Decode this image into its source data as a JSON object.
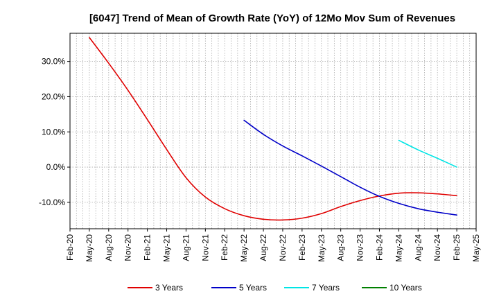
{
  "chart_data": {
    "type": "line",
    "title": "[6047]  Trend of Mean of Growth Rate (YoY) of 12Mo Mov Sum of Revenues",
    "xlabel": "",
    "ylabel": "",
    "ylim": [
      -17.5,
      38
    ],
    "yticks": [
      -10,
      0,
      10,
      20,
      30
    ],
    "ytick_labels": [
      "-10.0%",
      "0.0%",
      "10.0%",
      "20.0%",
      "30.0%"
    ],
    "x_tick_labels": [
      "Feb-20",
      "May-20",
      "Aug-20",
      "Nov-20",
      "Feb-21",
      "May-21",
      "Aug-21",
      "Nov-21",
      "Feb-22",
      "May-22",
      "Aug-22",
      "Nov-22",
      "Feb-23",
      "May-23",
      "Aug-23",
      "Nov-23",
      "Feb-24",
      "May-24",
      "Aug-24",
      "Nov-24",
      "Feb-25",
      "May-25"
    ],
    "x_minor_per_major": 3,
    "grid": true,
    "legend_position": "bottom",
    "series": [
      {
        "name": "3 Years",
        "color": "#e00000",
        "x": [
          1,
          2,
          3,
          4,
          5,
          6,
          7,
          8,
          9,
          10,
          11,
          12,
          13,
          14,
          15,
          16,
          17,
          18,
          19,
          20
        ],
        "values": [
          36.8,
          29.5,
          21.8,
          13.5,
          5.0,
          -3.0,
          -8.5,
          -11.8,
          -13.8,
          -14.8,
          -15.0,
          -14.5,
          -13.2,
          -11.2,
          -9.5,
          -8.2,
          -7.4,
          -7.3,
          -7.6,
          -8.1
        ]
      },
      {
        "name": "5 Years",
        "color": "#0000c8",
        "x": [
          9,
          10,
          11,
          12,
          13,
          14,
          15,
          16,
          17,
          18,
          19,
          20
        ],
        "values": [
          13.3,
          9.3,
          6.0,
          3.2,
          0.3,
          -2.7,
          -5.7,
          -8.3,
          -10.3,
          -11.8,
          -12.8,
          -13.6
        ]
      },
      {
        "name": "7 Years",
        "color": "#00e5e5",
        "x": [
          17,
          18,
          19,
          20
        ],
        "values": [
          7.6,
          4.9,
          2.5,
          0.0
        ]
      },
      {
        "name": "10 Years",
        "color": "#008000",
        "x": [],
        "values": []
      }
    ]
  }
}
